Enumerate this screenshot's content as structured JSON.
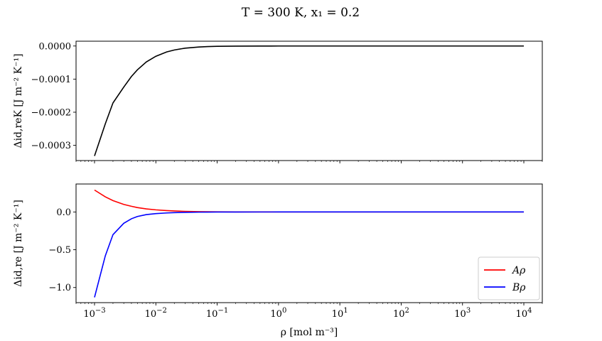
{
  "figure": {
    "suptitle": "T = 300 K, x₁ = 0.2"
  },
  "chart_data": [
    {
      "type": "line",
      "xscale": "log",
      "xlim": [
        0.0005,
        20000
      ],
      "ylim": [
        -0.000346,
        1.45e-05
      ],
      "xlabel": "",
      "ylabel": "Δid,reK [J m⁻² K⁻¹]",
      "yticks": [
        0.0,
        -0.0001,
        -0.0002,
        -0.0003
      ],
      "ytick_labels": [
        "0.0000",
        "−0.0001",
        "−0.0002",
        "−0.0003"
      ],
      "x_tick_labels_visible": false,
      "legend": null,
      "series": [
        {
          "color": "#000000",
          "x": [
            0.001,
            0.0015,
            0.002,
            0.003,
            0.004,
            0.005,
            0.007,
            0.01,
            0.015,
            0.02,
            0.03,
            0.05,
            0.07,
            0.1,
            0.2,
            0.5,
            1,
            10,
            100,
            1000,
            10000
          ],
          "y": [
            -0.000332,
            -0.000235,
            -0.000172,
            -0.000124,
            -9.2e-05,
            -7.2e-05,
            -4.8e-05,
            -3.1e-05,
            -1.8e-05,
            -1.2e-05,
            -6.5e-06,
            -3e-06,
            -1.8e-06,
            -1e-06,
            -4e-07,
            -1e-07,
            0,
            0,
            0,
            0,
            0
          ]
        }
      ]
    },
    {
      "type": "line",
      "xscale": "log",
      "xlim": [
        0.0005,
        20000
      ],
      "ylim": [
        -1.2,
        0.37
      ],
      "xlabel": "ρ [mol m⁻³]",
      "ylabel": "Δid,re [J m⁻² K⁻¹]",
      "yticks": [
        0.0,
        -0.5,
        -1.0
      ],
      "ytick_labels": [
        "0.0",
        "−0.5",
        "−1.0"
      ],
      "xticks": [
        0.001,
        0.01,
        0.1,
        1,
        10,
        100,
        1000,
        10000
      ],
      "xtick_labels": [
        {
          "base": "10",
          "exp": "−3"
        },
        {
          "base": "10",
          "exp": "−2"
        },
        {
          "base": "10",
          "exp": "−1"
        },
        {
          "base": "10",
          "exp": "0"
        },
        {
          "base": "10",
          "exp": "1"
        },
        {
          "base": "10",
          "exp": "2"
        },
        {
          "base": "10",
          "exp": "3"
        },
        {
          "base": "10",
          "exp": "4"
        }
      ],
      "legend": "lower right",
      "series": [
        {
          "name": "Aρ",
          "color": "#ff0000",
          "x": [
            0.001,
            0.0015,
            0.002,
            0.003,
            0.004,
            0.005,
            0.007,
            0.01,
            0.015,
            0.02,
            0.03,
            0.05,
            0.07,
            0.1,
            0.2,
            0.5,
            1,
            10,
            100,
            1000,
            10000
          ],
          "y": [
            0.29,
            0.2,
            0.15,
            0.1,
            0.075,
            0.058,
            0.04,
            0.028,
            0.018,
            0.013,
            0.008,
            0.004,
            0.0025,
            0.0015,
            0.0006,
            0.0002,
            0,
            0,
            0,
            0,
            0
          ]
        },
        {
          "name": "Bρ",
          "color": "#0000ff",
          "x": [
            0.001,
            0.0015,
            0.002,
            0.003,
            0.004,
            0.005,
            0.007,
            0.01,
            0.015,
            0.02,
            0.03,
            0.05,
            0.07,
            0.1,
            0.2,
            0.5,
            1,
            10,
            100,
            1000,
            10000
          ],
          "y": [
            -1.13,
            -0.58,
            -0.3,
            -0.15,
            -0.09,
            -0.06,
            -0.035,
            -0.022,
            -0.013,
            -0.009,
            -0.005,
            -0.0025,
            -0.0015,
            -0.0009,
            -0.0004,
            -0.0001,
            0,
            0,
            0,
            0,
            0
          ]
        }
      ]
    }
  ]
}
